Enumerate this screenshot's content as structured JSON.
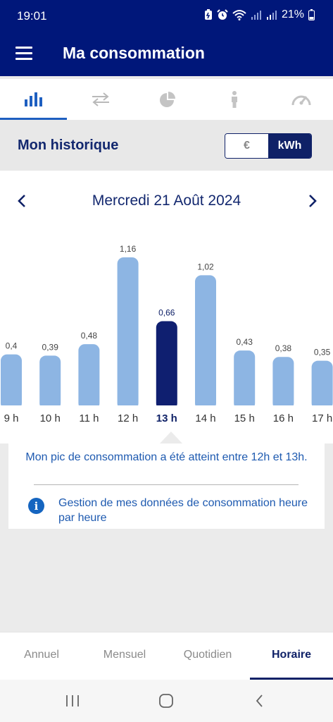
{
  "status_bar": {
    "time": "19:01",
    "battery": "21%"
  },
  "app_bar": {
    "title": "Ma consommation"
  },
  "tabs": [
    {
      "icon": "bar-chart-icon",
      "active": true
    },
    {
      "icon": "swap-arrows-icon",
      "active": false
    },
    {
      "icon": "pie-chart-icon",
      "active": false
    },
    {
      "icon": "person-icon",
      "active": false
    },
    {
      "icon": "gauge-icon",
      "active": false
    }
  ],
  "section": {
    "title": "Mon historique",
    "unit_toggle": {
      "euro": "€",
      "kwh": "kWh",
      "selected": "kWh"
    }
  },
  "date_nav": {
    "date": "Mercredi 21 Août 2024"
  },
  "chart_data": {
    "type": "bar",
    "categories": [
      "9 h",
      "10 h",
      "11 h",
      "12 h",
      "13 h",
      "14 h",
      "15 h",
      "16 h",
      "17 h"
    ],
    "values": [
      0.4,
      0.39,
      0.48,
      1.16,
      0.66,
      1.02,
      0.43,
      0.38,
      0.35
    ],
    "value_labels": [
      "0,4",
      "0,39",
      "0,48",
      "1,16",
      "0,66",
      "1,02",
      "0,43",
      "0,38",
      "0,35"
    ],
    "selected_index": 4,
    "colors": {
      "bar": "#8db5e3",
      "selected": "#0f1f70",
      "label": "#444444",
      "selected_label": "#0f2167"
    }
  },
  "info": {
    "peak_text": "Mon pic de consommation a été atteint entre 12h et 13h.",
    "link_text": "Gestion de mes données de consommation heure par heure",
    "icon": "info-icon"
  },
  "bottom_nav": [
    {
      "label": "Annuel",
      "active": false
    },
    {
      "label": "Mensuel",
      "active": false
    },
    {
      "label": "Quotidien",
      "active": false
    },
    {
      "label": "Horaire",
      "active": true
    }
  ],
  "colors": {
    "brand": "#00177a",
    "accent": "#1565c0"
  }
}
